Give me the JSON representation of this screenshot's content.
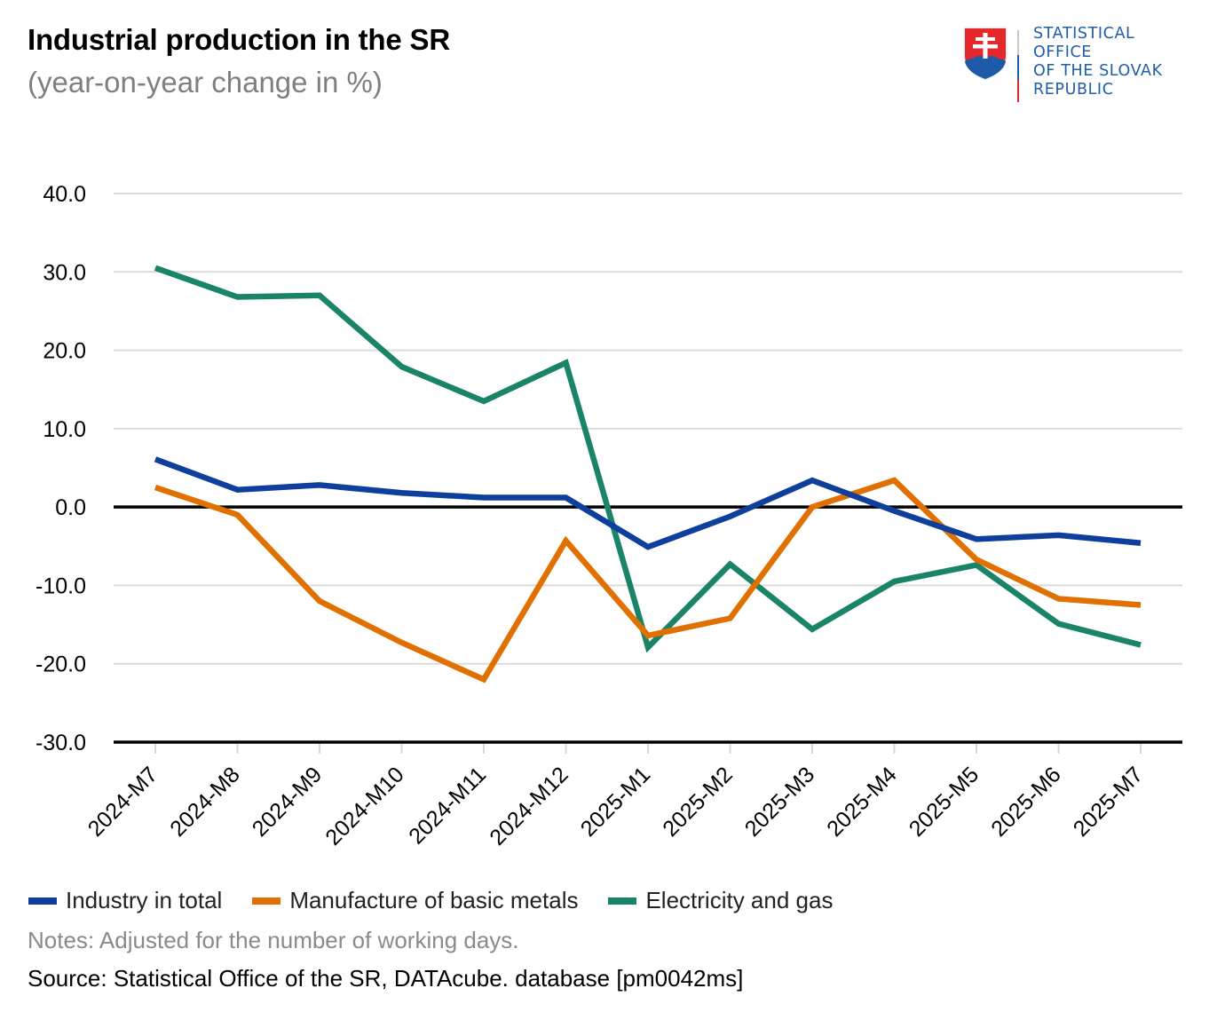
{
  "header": {
    "title": "Industrial production in the SR",
    "subtitle": "(year-on-year change in %)"
  },
  "logo": {
    "icon": "slovak-coat-of-arms-icon",
    "lines": [
      "STATISTICAL",
      "OFFICE",
      "OF THE SLOVAK",
      "REPUBLIC"
    ],
    "text_color": "#1f5ea8"
  },
  "chart_data": {
    "type": "line",
    "title": "Industrial production in the SR",
    "subtitle": "(year-on-year change in %)",
    "xlabel": "",
    "ylabel": "",
    "ylim": [
      -30,
      40
    ],
    "yticks": [
      40,
      30,
      20,
      10,
      0,
      -10,
      -20,
      -30
    ],
    "ytick_labels": [
      "40.0",
      "30.0",
      "20.0",
      "10.0",
      "0.0",
      "-10.0",
      "-20.0",
      "-30.0"
    ],
    "grid": true,
    "zero_line": true,
    "legend_position": "bottom",
    "categories": [
      "2024-M7",
      "2024-M8",
      "2024-M9",
      "2024-M10",
      "2024-M11",
      "2024-M12",
      "2025-M1",
      "2025-M2",
      "2025-M3",
      "2025-M4",
      "2025-M5",
      "2025-M6",
      "2025-M7"
    ],
    "series": [
      {
        "name": "Industry in total",
        "color": "#0f3f9c",
        "values": [
          6.1,
          2.2,
          2.8,
          1.8,
          1.2,
          1.2,
          -5.1,
          -1.2,
          3.4,
          -0.5,
          -4.1,
          -3.6,
          -4.6
        ]
      },
      {
        "name": "Manufacture of basic metals",
        "color": "#e07000",
        "values": [
          2.5,
          -1.0,
          -12.0,
          -17.3,
          -22.0,
          -4.3,
          -16.4,
          -14.2,
          0.0,
          3.4,
          -6.7,
          -11.7,
          -12.5
        ]
      },
      {
        "name": "Electricity and gas",
        "color": "#1a8468",
        "values": [
          30.5,
          26.8,
          27.0,
          17.9,
          13.5,
          18.4,
          -17.9,
          -7.3,
          -15.6,
          -9.5,
          -7.4,
          -14.9,
          -17.6
        ]
      }
    ]
  },
  "footer": {
    "notes": "Notes: Adjusted for the number of working days.",
    "source": "Source: Statistical Office of the SR, DATAcube. database [pm0042ms]"
  }
}
